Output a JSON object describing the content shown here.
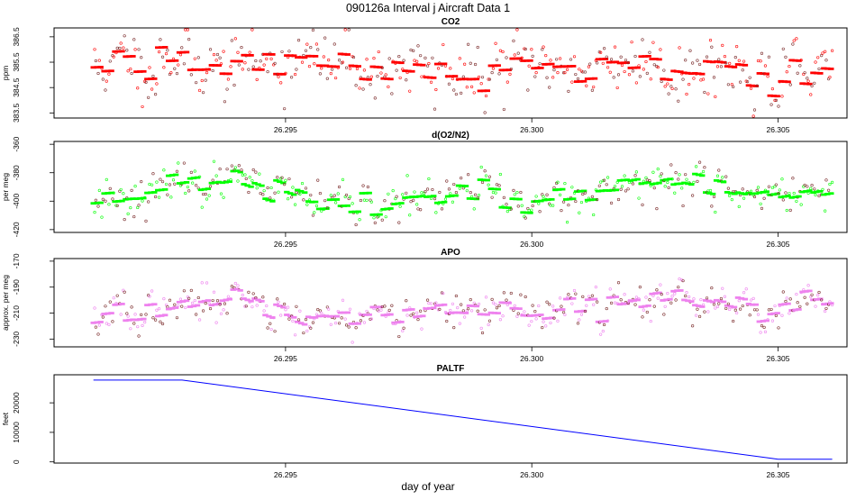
{
  "title": "090126a   Interval j Aircraft Data 1",
  "xlabel": "day of year",
  "x_ticks": [
    26.295,
    26.3,
    26.305
  ],
  "x_tick_labels": [
    "26.295",
    "26.300",
    "26.305"
  ],
  "x_range": [
    26.2903,
    26.3064
  ],
  "colors": {
    "co2": "#ff0000",
    "o2n2": "#00ff00",
    "apo": "#ee82ee",
    "paltf": "#0000ff",
    "outline": "#000000"
  },
  "chart_data": [
    {
      "id": "co2",
      "type": "scatter",
      "title": "CO2",
      "ylabel": "ppm",
      "ylim": [
        383.3,
        386.85
      ],
      "yticks": [
        383.5,
        384.5,
        385.5,
        386.5
      ],
      "ytick_labels": [
        "383.5",
        "384.5",
        "385.5",
        "386.5"
      ],
      "x_start": 26.2911,
      "x_end": 26.3061,
      "n_points": 620,
      "seed": 11,
      "baseline": [
        [
          26.2911,
          385.4
        ],
        [
          26.2935,
          385.6
        ],
        [
          26.296,
          385.5
        ],
        [
          26.298,
          385.2
        ],
        [
          26.3,
          385.3
        ],
        [
          26.3025,
          385.5
        ],
        [
          26.3045,
          385.1
        ],
        [
          26.3061,
          384.9
        ]
      ],
      "noise": 0.55,
      "step_noise": 0.38,
      "step_every": 9
    },
    {
      "id": "o2n2",
      "type": "scatter",
      "title": "d(O2/N2)",
      "ylabel": "per meg",
      "ylim": [
        -422,
        -358
      ],
      "yticks": [
        -420,
        -400,
        -380,
        -360
      ],
      "ytick_labels": [
        "-420",
        "-400",
        "-380",
        "-360"
      ],
      "x_start": 26.2911,
      "x_end": 26.3061,
      "n_points": 620,
      "seed": 23,
      "baseline": [
        [
          26.2911,
          -396
        ],
        [
          26.2925,
          -392
        ],
        [
          26.294,
          -385
        ],
        [
          26.2955,
          -403
        ],
        [
          26.297,
          -401
        ],
        [
          26.2985,
          -395
        ],
        [
          26.3,
          -398
        ],
        [
          26.302,
          -392
        ],
        [
          26.303,
          -386
        ],
        [
          26.3045,
          -397
        ],
        [
          26.3061,
          -388
        ]
      ],
      "noise": 6,
      "step_noise": 5,
      "step_every": 9
    },
    {
      "id": "apo",
      "type": "scatter",
      "title": "APO",
      "ylabel": "approx. per meg",
      "ylim": [
        -236,
        -168
      ],
      "yticks": [
        -230,
        -210,
        -190,
        -170
      ],
      "ytick_labels": [
        "-230",
        "-210",
        "-190",
        "-170"
      ],
      "x_start": 26.2911,
      "x_end": 26.3061,
      "n_points": 620,
      "seed": 37,
      "baseline": [
        [
          26.2911,
          -212
        ],
        [
          26.2925,
          -206
        ],
        [
          26.294,
          -195
        ],
        [
          26.2955,
          -215
        ],
        [
          26.297,
          -214
        ],
        [
          26.2985,
          -208
        ],
        [
          26.3,
          -211
        ],
        [
          26.302,
          -204
        ],
        [
          26.303,
          -198
        ],
        [
          26.3045,
          -210
        ],
        [
          26.3061,
          -202
        ]
      ],
      "noise": 6,
      "step_noise": 5,
      "step_every": 9
    },
    {
      "id": "paltf",
      "type": "line",
      "title": "PALTF",
      "ylabel": "feet",
      "ylim": [
        -400,
        29500
      ],
      "yticks": [
        0,
        10000,
        20000
      ],
      "ytick_labels": [
        "0",
        "10000",
        "20000"
      ],
      "x": [
        26.2911,
        26.2929,
        26.305,
        26.3061
      ],
      "y": [
        27700,
        27700,
        900,
        900
      ]
    }
  ]
}
